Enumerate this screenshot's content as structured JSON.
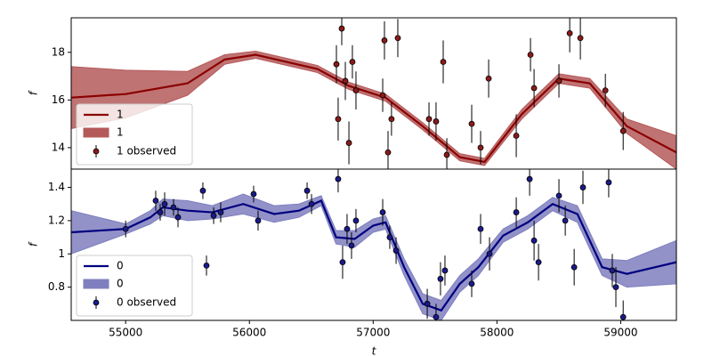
{
  "chart_data": [
    {
      "type": "line",
      "ylabel": "f",
      "xlim": [
        54560,
        59450
      ],
      "ylim": [
        13.1,
        19.45
      ],
      "yticks": [
        14,
        16,
        18
      ],
      "legend": "lower left",
      "x": [
        54560,
        55000,
        55500,
        55800,
        56050,
        56300,
        56550,
        56800,
        57100,
        57400,
        57700,
        57900,
        58200,
        58500,
        58750,
        59050,
        59450
      ],
      "series": [
        {
          "name": "1",
          "color": "#8b0000",
          "values": [
            16.1,
            16.25,
            16.7,
            17.7,
            17.9,
            17.6,
            17.3,
            16.6,
            16.1,
            14.9,
            13.6,
            13.4,
            15.4,
            16.9,
            16.7,
            14.9,
            13.8
          ]
        }
      ],
      "band": {
        "name": "1",
        "color": "#b55a5a",
        "lower": [
          14.8,
          15.25,
          16.2,
          17.5,
          17.75,
          17.45,
          17.15,
          16.45,
          15.95,
          14.75,
          13.45,
          13.25,
          15.2,
          16.7,
          16.5,
          14.6,
          13.1
        ],
        "upper": [
          17.4,
          17.25,
          17.2,
          17.9,
          18.05,
          17.75,
          17.45,
          16.75,
          16.25,
          15.05,
          13.75,
          13.55,
          15.6,
          17.1,
          16.9,
          15.2,
          14.5
        ]
      },
      "points": {
        "name": "1 observed",
        "color": "#8b1a1a",
        "x": [
          56703,
          56717,
          56746,
          56775,
          56804,
          56832,
          56861,
          57077,
          57091,
          57120,
          57148,
          57199,
          57451,
          57508,
          57566,
          57595,
          57796,
          57868,
          57933,
          58156,
          58271,
          58300,
          58501,
          58588,
          58674,
          58876,
          59020
        ],
        "values": [
          17.5,
          15.2,
          19.0,
          16.8,
          14.2,
          17.6,
          16.4,
          16.2,
          18.5,
          13.8,
          15.2,
          18.6,
          15.2,
          15.1,
          17.6,
          13.7,
          15.0,
          14.0,
          16.9,
          14.5,
          17.9,
          16.5,
          16.8,
          18.8,
          18.6,
          16.4,
          14.7
        ],
        "errors": [
          0.8,
          0.9,
          0.7,
          0.8,
          0.9,
          0.7,
          0.8,
          0.7,
          0.8,
          0.9,
          0.7,
          0.8,
          0.7,
          0.8,
          0.9,
          0.7,
          0.8,
          0.7,
          0.8,
          0.9,
          0.7,
          0.8,
          0.7,
          0.8,
          0.9,
          0.7,
          0.8
        ]
      }
    },
    {
      "type": "line",
      "ylabel": "f",
      "xlabel": "t",
      "xlim": [
        54560,
        59450
      ],
      "ylim": [
        0.6,
        1.51
      ],
      "xticks": [
        55000,
        56000,
        57000,
        58000,
        59000
      ],
      "yticks": [
        0.8,
        1.0,
        1.2,
        1.4
      ],
      "legend": "lower left",
      "x": [
        54560,
        55000,
        55200,
        55300,
        55500,
        55700,
        55950,
        56200,
        56400,
        56580,
        56700,
        56850,
        57000,
        57100,
        57250,
        57400,
        57550,
        57700,
        57850,
        58050,
        58250,
        58450,
        58650,
        58850,
        59050,
        59450
      ],
      "series": [
        {
          "name": "0",
          "color": "#00007f",
          "values": [
            1.13,
            1.15,
            1.22,
            1.28,
            1.26,
            1.25,
            1.3,
            1.24,
            1.26,
            1.32,
            1.1,
            1.09,
            1.17,
            1.19,
            0.92,
            0.7,
            0.66,
            0.82,
            0.92,
            1.11,
            1.19,
            1.3,
            1.24,
            0.92,
            0.88,
            0.95
          ]
        }
      ],
      "band": {
        "name": "0",
        "color": "#7f7fbf",
        "lower": [
          1.0,
          1.12,
          1.18,
          1.23,
          1.2,
          1.21,
          1.24,
          1.19,
          1.22,
          1.29,
          1.06,
          1.04,
          1.13,
          1.15,
          0.87,
          0.64,
          0.6,
          0.77,
          0.87,
          1.07,
          1.15,
          1.26,
          1.19,
          0.87,
          0.8,
          0.82
        ],
        "upper": [
          1.26,
          1.18,
          1.26,
          1.33,
          1.32,
          1.29,
          1.36,
          1.29,
          1.3,
          1.35,
          1.14,
          1.14,
          1.21,
          1.23,
          0.97,
          0.76,
          0.72,
          0.87,
          0.97,
          1.15,
          1.23,
          1.34,
          1.29,
          0.97,
          0.96,
          1.08
        ]
      },
      "points": {
        "name": "0 observed",
        "color": "#1a1a8b",
        "x": [
          55000,
          55243,
          55279,
          55315,
          55387,
          55423,
          55624,
          55653,
          55711,
          55768,
          56034,
          56070,
          56466,
          56502,
          56717,
          56753,
          56789,
          56825,
          56861,
          57077,
          57134,
          57185,
          57437,
          57508,
          57544,
          57580,
          57796,
          57868,
          57940,
          58156,
          58264,
          58300,
          58336,
          58501,
          58552,
          58624,
          58695,
          58903,
          58932,
          58961,
          59020
        ],
        "values": [
          1.15,
          1.32,
          1.25,
          1.3,
          1.28,
          1.22,
          1.38,
          0.93,
          1.23,
          1.25,
          1.36,
          1.2,
          1.38,
          1.3,
          1.45,
          0.95,
          1.15,
          1.05,
          1.2,
          1.25,
          1.1,
          1.02,
          0.7,
          0.62,
          0.85,
          0.9,
          0.82,
          1.15,
          1.0,
          1.25,
          1.45,
          1.08,
          0.95,
          1.35,
          1.2,
          0.92,
          1.4,
          1.43,
          0.9,
          0.8,
          0.62
        ],
        "errors": [
          0.05,
          0.06,
          0.05,
          0.07,
          0.05,
          0.06,
          0.05,
          0.06,
          0.05,
          0.06,
          0.05,
          0.06,
          0.05,
          0.06,
          0.08,
          0.1,
          0.09,
          0.08,
          0.07,
          0.08,
          0.07,
          0.08,
          0.09,
          0.08,
          0.1,
          0.09,
          0.08,
          0.09,
          0.1,
          0.09,
          0.1,
          0.12,
          0.11,
          0.1,
          0.09,
          0.11,
          0.1,
          0.09,
          0.1,
          0.12,
          0.1
        ]
      }
    }
  ]
}
